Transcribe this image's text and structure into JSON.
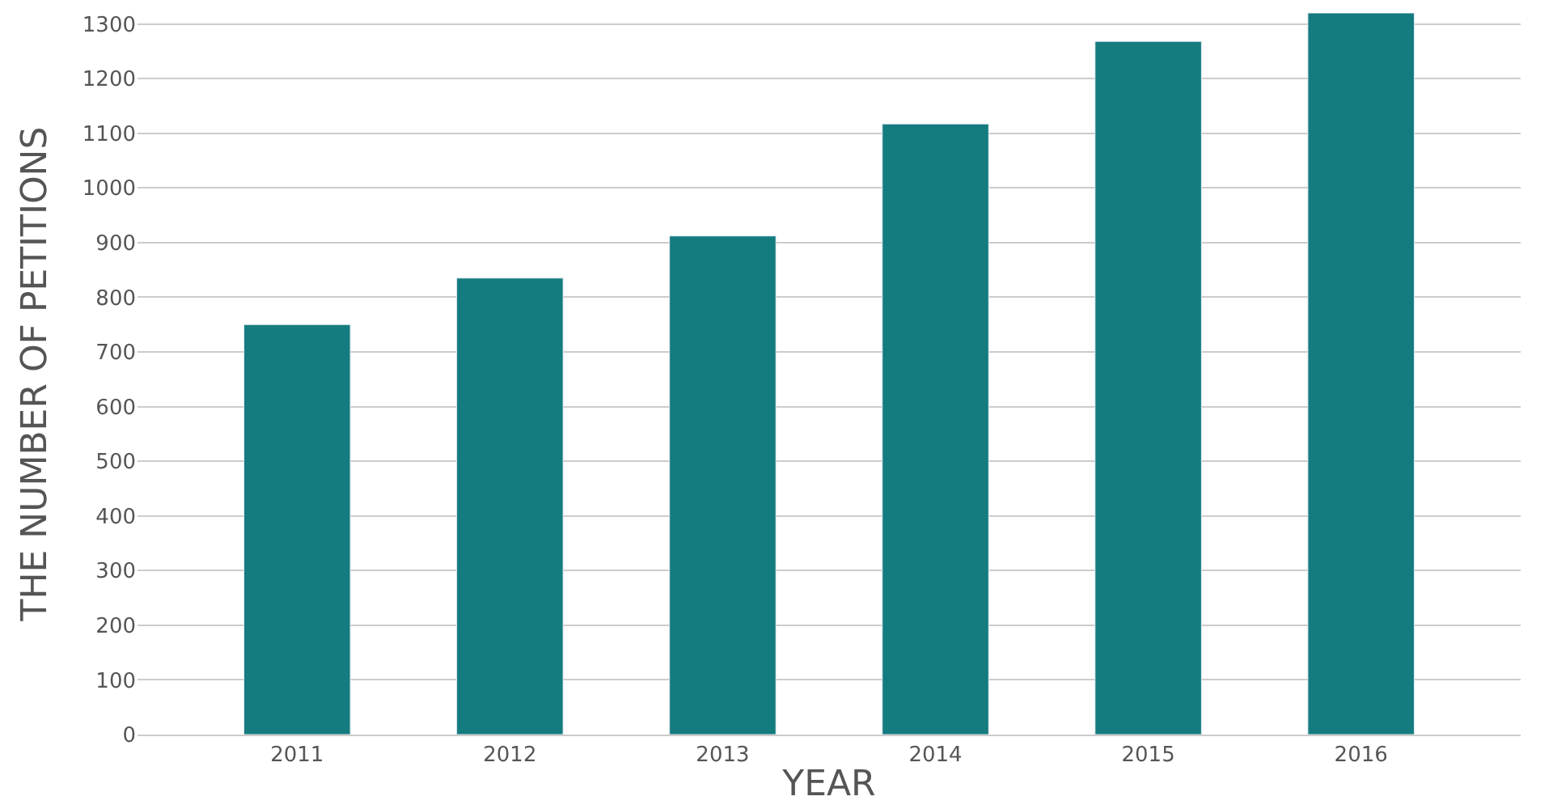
{
  "chart_data": {
    "type": "bar",
    "xlabel": "YEAR",
    "ylabel": "THE NUMBER OF PETITIONS",
    "categories": [
      "2011",
      "2012",
      "2013",
      "2014",
      "2015",
      "2016"
    ],
    "values": [
      750,
      835,
      912,
      1117,
      1268,
      1320
    ],
    "color": "#147b7e",
    "ylim": [
      0,
      1320
    ],
    "yticks": [
      0,
      100,
      200,
      300,
      400,
      500,
      600,
      700,
      800,
      900,
      1000,
      1100,
      1200,
      1300
    ],
    "grid": "y",
    "legend": false
  }
}
